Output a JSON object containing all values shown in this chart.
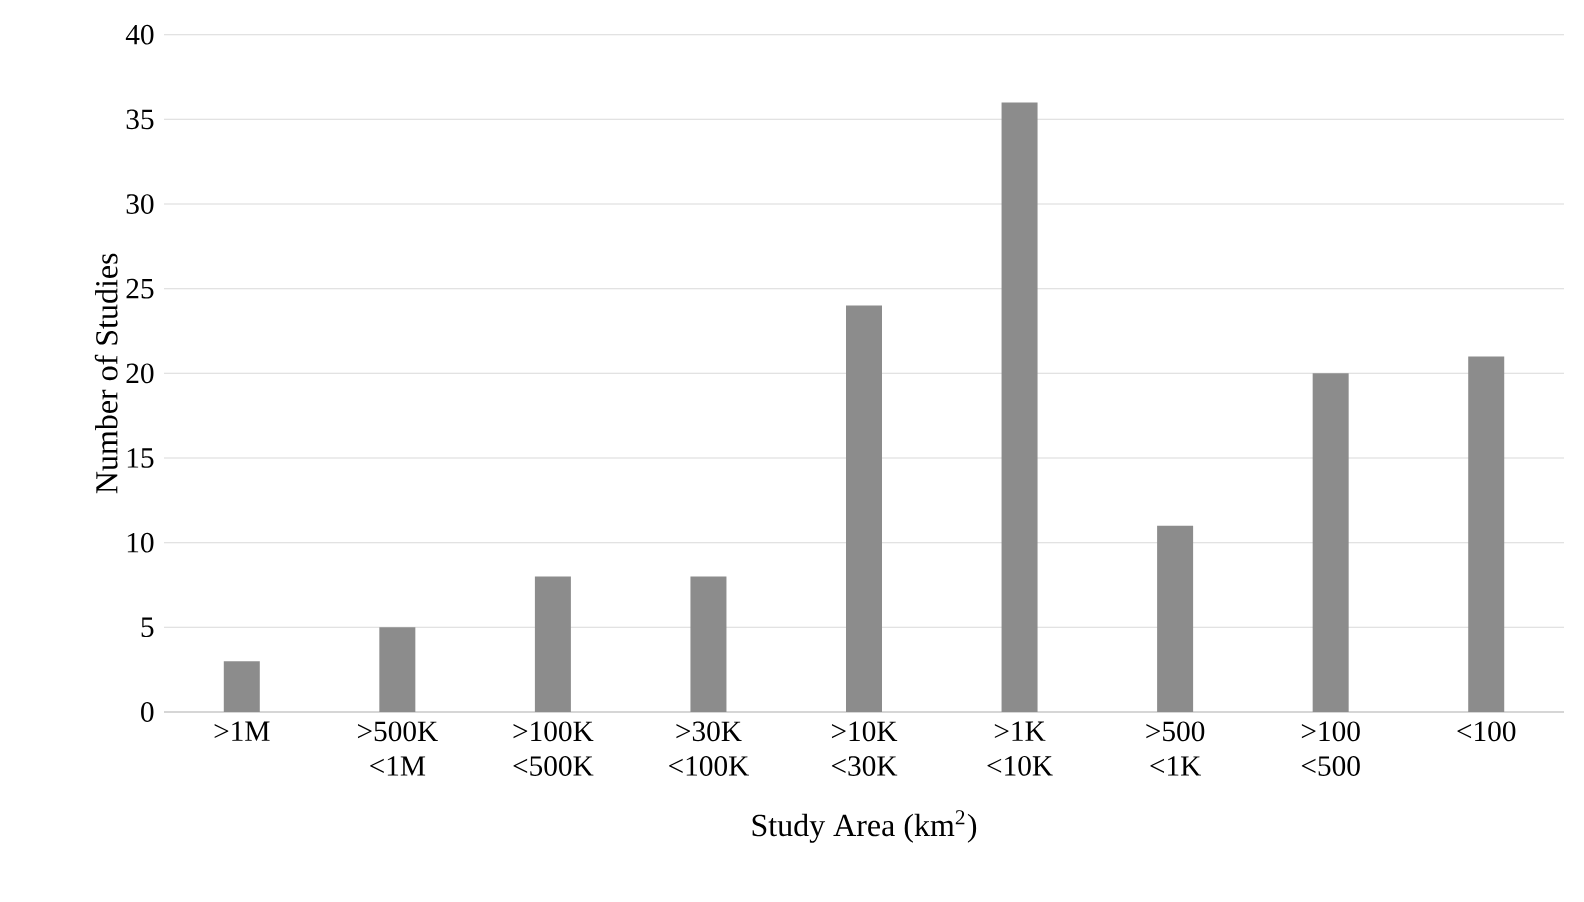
{
  "chart_data": {
    "type": "bar",
    "categories": [
      ">1M",
      ">500K <1M",
      ">100K <500K",
      ">30K <100K",
      ">10K <30K",
      ">1K <10K",
      ">500 <1K",
      ">100 <500",
      "<100"
    ],
    "values": [
      3,
      5,
      8,
      8,
      24,
      36,
      11,
      20,
      21
    ],
    "color": "#8c8c8c",
    "xlabel": "Study Area (km$^{2}$)",
    "ylabel": "Number of Studies",
    "ylim": [
      0,
      40
    ],
    "yticks": [
      0,
      5,
      10,
      15,
      20,
      25,
      30,
      35,
      40
    ],
    "grid": "y"
  }
}
